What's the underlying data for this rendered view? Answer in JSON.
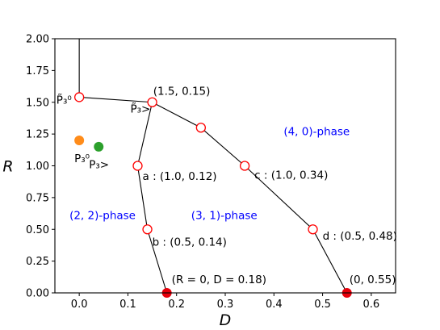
{
  "chart_data": {
    "type": "scatter",
    "xlabel": "D",
    "ylabel": "R",
    "xlim": [
      -0.05,
      0.65
    ],
    "ylim": [
      0.0,
      2.0
    ],
    "x_ticks": [
      0.0,
      0.1,
      0.2,
      0.3,
      0.4,
      0.5,
      0.6
    ],
    "x_tick_labels": [
      "0.0",
      "0.1",
      "0.2",
      "0.3",
      "0.4",
      "0.5",
      "0.6"
    ],
    "y_ticks": [
      0.0,
      0.25,
      0.5,
      0.75,
      1.0,
      1.25,
      1.5,
      1.75,
      2.0
    ],
    "y_tick_labels": [
      "0.00",
      "0.25",
      "0.50",
      "0.75",
      "1.00",
      "1.25",
      "1.50",
      "1.75",
      "2.00"
    ],
    "grid": false,
    "lines": [
      {
        "points": [
          [
            0.0,
            2.0
          ],
          [
            0.0,
            1.54
          ]
        ]
      },
      {
        "points": [
          [
            0.0,
            1.54
          ],
          [
            0.15,
            1.5
          ]
        ]
      },
      {
        "points": [
          [
            0.15,
            1.5
          ],
          [
            0.12,
            1.0
          ],
          [
            0.14,
            0.5
          ],
          [
            0.18,
            0.0
          ]
        ]
      },
      {
        "points": [
          [
            0.15,
            1.5
          ],
          [
            0.25,
            1.3
          ],
          [
            0.34,
            1.0
          ],
          [
            0.48,
            0.5
          ],
          [
            0.55,
            0.0
          ]
        ]
      }
    ],
    "open_points": [
      {
        "x": 0.0,
        "y": 1.54,
        "color": "#ff0000"
      },
      {
        "x": 0.15,
        "y": 1.5,
        "color": "#ff0000"
      },
      {
        "x": 0.25,
        "y": 1.3,
        "color": "#ff0000"
      },
      {
        "x": 0.12,
        "y": 1.0,
        "color": "#ff0000"
      },
      {
        "x": 0.34,
        "y": 1.0,
        "color": "#ff0000"
      },
      {
        "x": 0.14,
        "y": 0.5,
        "color": "#ff0000"
      },
      {
        "x": 0.48,
        "y": 0.5,
        "color": "#ff0000"
      }
    ],
    "filled_points": [
      {
        "x": 0.0,
        "y": 1.2,
        "color": "#ff8c1a"
      },
      {
        "x": 0.04,
        "y": 1.15,
        "color": "#2ca02c"
      },
      {
        "x": 0.18,
        "y": 0.0,
        "color": "#e8000b"
      },
      {
        "x": 0.55,
        "y": 0.0,
        "color": "#e8000b"
      }
    ],
    "annotations": [
      {
        "text": "(1.5, 0.15)",
        "x": 0.152,
        "y": 1.56,
        "anchor": "start"
      },
      {
        "text": "a : (1.0, 0.12)",
        "x": 0.13,
        "y": 0.89,
        "anchor": "start"
      },
      {
        "text": "c : (1.0, 0.34)",
        "x": 0.36,
        "y": 0.9,
        "anchor": "start"
      },
      {
        "text": "b : (0.5, 0.14)",
        "x": 0.15,
        "y": 0.37,
        "anchor": "start"
      },
      {
        "text": "d : (0.5, 0.48)",
        "x": 0.5,
        "y": 0.42,
        "anchor": "start"
      },
      {
        "text": "(R = 0, D = 0.18)",
        "x": 0.19,
        "y": 0.075,
        "anchor": "start"
      },
      {
        "text": "(0, 0.55)",
        "x": 0.555,
        "y": 0.075,
        "anchor": "start"
      },
      {
        "text": "P̃₃⁰",
        "x": -0.047,
        "y": 1.49,
        "anchor": "start"
      },
      {
        "text": "P̃₃>",
        "x": 0.105,
        "y": 1.42,
        "anchor": "start"
      },
      {
        "text": "P₃⁰",
        "x": -0.01,
        "y": 1.03,
        "anchor": "start"
      },
      {
        "text": "P₃>",
        "x": 0.02,
        "y": 0.98,
        "anchor": "start"
      }
    ],
    "phase_labels": [
      {
        "text": "(4, 0)-phase",
        "x": 0.42,
        "y": 1.24,
        "color": "#0000ff"
      },
      {
        "text": "(2, 2)-phase",
        "x": -0.02,
        "y": 0.58,
        "color": "#0000ff"
      },
      {
        "text": "(3, 1)-phase",
        "x": 0.23,
        "y": 0.58,
        "color": "#0000ff"
      }
    ]
  }
}
